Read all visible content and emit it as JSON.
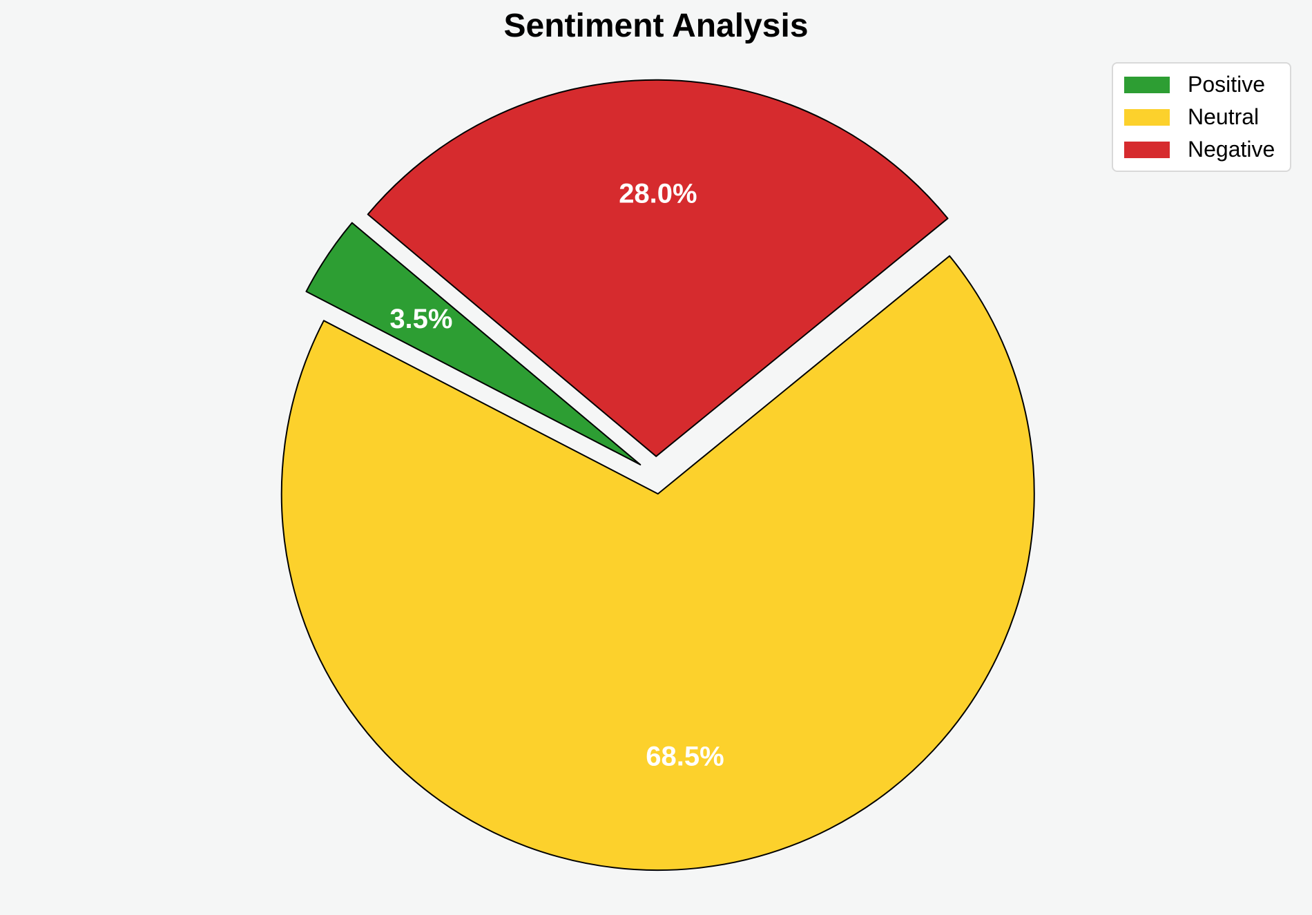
{
  "page": {
    "background_color": "#f5f6f6"
  },
  "chart_data": {
    "type": "pie",
    "title": "Sentiment Analysis",
    "slices": [
      {
        "label": "Positive",
        "value": 3.5,
        "pct_label": "3.5%",
        "color": "#2d9e33"
      },
      {
        "label": "Neutral",
        "value": 68.5,
        "pct_label": "68.5%",
        "color": "#fcd12c"
      },
      {
        "label": "Negative",
        "value": 28.0,
        "pct_label": "28.0%",
        "color": "#d62b2e"
      }
    ],
    "start_angle": 140,
    "direction": "counterclockwise",
    "explode": 0.05,
    "pct_label_distance": 0.7,
    "pct_label_color": "#ffffff",
    "edge_color": "#000000",
    "legend": {
      "position": "upper right",
      "entries": [
        "Positive",
        "Neutral",
        "Negative"
      ]
    }
  }
}
